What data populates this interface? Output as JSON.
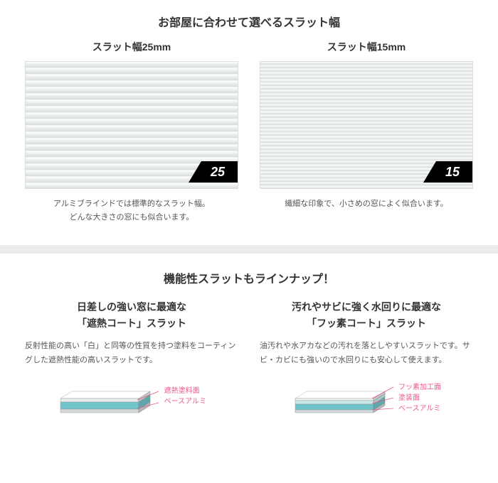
{
  "section1": {
    "title": "お部屋に合わせて選べるスラット幅",
    "items": [
      {
        "title": "スラット幅25mm",
        "badge": "25",
        "slat_height": 9,
        "slat_count": 20,
        "caption_l1": "アルミブラインドでは標準的なスラット幅。",
        "caption_l2": "どんな大きさの窓にも似合います。"
      },
      {
        "title": "スラット幅15mm",
        "badge": "15",
        "slat_height": 5,
        "slat_count": 36,
        "caption_l1": "繊細な印象で、小さめの窓によく似合います。",
        "caption_l2": ""
      }
    ]
  },
  "section2": {
    "title": "機能性スラットもラインナップ！",
    "items": [
      {
        "heading_l1": "日差しの強い窓に最適な",
        "heading_l2": "「遮熱コート」スラット",
        "desc": "反射性能の高い「白」と同等の性質を持つ塗料をコーティングした遮熱性能の高いスラットです。",
        "labels": [
          "遮熱塗料面",
          "ベースアルミ"
        ],
        "layers": [
          {
            "color": "#e8ecec",
            "h": 5
          },
          {
            "color": "#6fc4c9",
            "h": 10
          },
          {
            "color": "#d5d9d9",
            "h": 5
          }
        ]
      },
      {
        "heading_l1": "汚れやサビに強く水回りに最適な",
        "heading_l2": "「フッ素コート」スラット",
        "desc": "油汚れや水アカなどの汚れを落としやすいスラットです。サビ・カビにも強いので水回りにも安心して使えます。",
        "labels": [
          "フッ素加工面",
          "塗装面",
          "ベースアルミ"
        ],
        "layers": [
          {
            "color": "#f0f4f4",
            "h": 3
          },
          {
            "color": "#c8e8ea",
            "h": 5
          },
          {
            "color": "#6fc4c9",
            "h": 8
          },
          {
            "color": "#d5d9d9",
            "h": 4
          }
        ]
      }
    ]
  },
  "colors": {
    "plant_dark": "#2d4a2f",
    "plant_mid": "#3d6142",
    "plant_light": "#5a8560",
    "label_pink": "#e85a8a"
  }
}
